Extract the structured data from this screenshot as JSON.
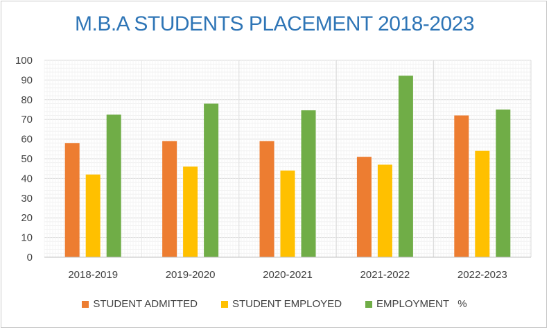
{
  "chart_data": {
    "type": "bar",
    "title": "M.B.A STUDENTS PLACEMENT 2018-2023",
    "categories": [
      "2018-2019",
      "2019-2020",
      "2020-2021",
      "2021-2022",
      "2022-2023"
    ],
    "series": [
      {
        "name": "STUDENT ADMITTED",
        "color": "#ed7d31",
        "values": [
          58,
          59,
          59,
          51,
          72
        ]
      },
      {
        "name": "STUDENT EMPLOYED",
        "color": "#ffc000",
        "values": [
          42,
          46,
          44,
          47,
          54
        ]
      },
      {
        "name": "EMPLOYMENT   %",
        "color": "#70ad47",
        "values": [
          72.4,
          78,
          74.6,
          92.2,
          75
        ]
      }
    ],
    "ylim": [
      0,
      100
    ],
    "yticks": [
      "0",
      "10",
      "20",
      "30",
      "40",
      "50",
      "60",
      "70",
      "80",
      "90",
      "100"
    ],
    "grid": true,
    "legend_position": "bottom"
  }
}
